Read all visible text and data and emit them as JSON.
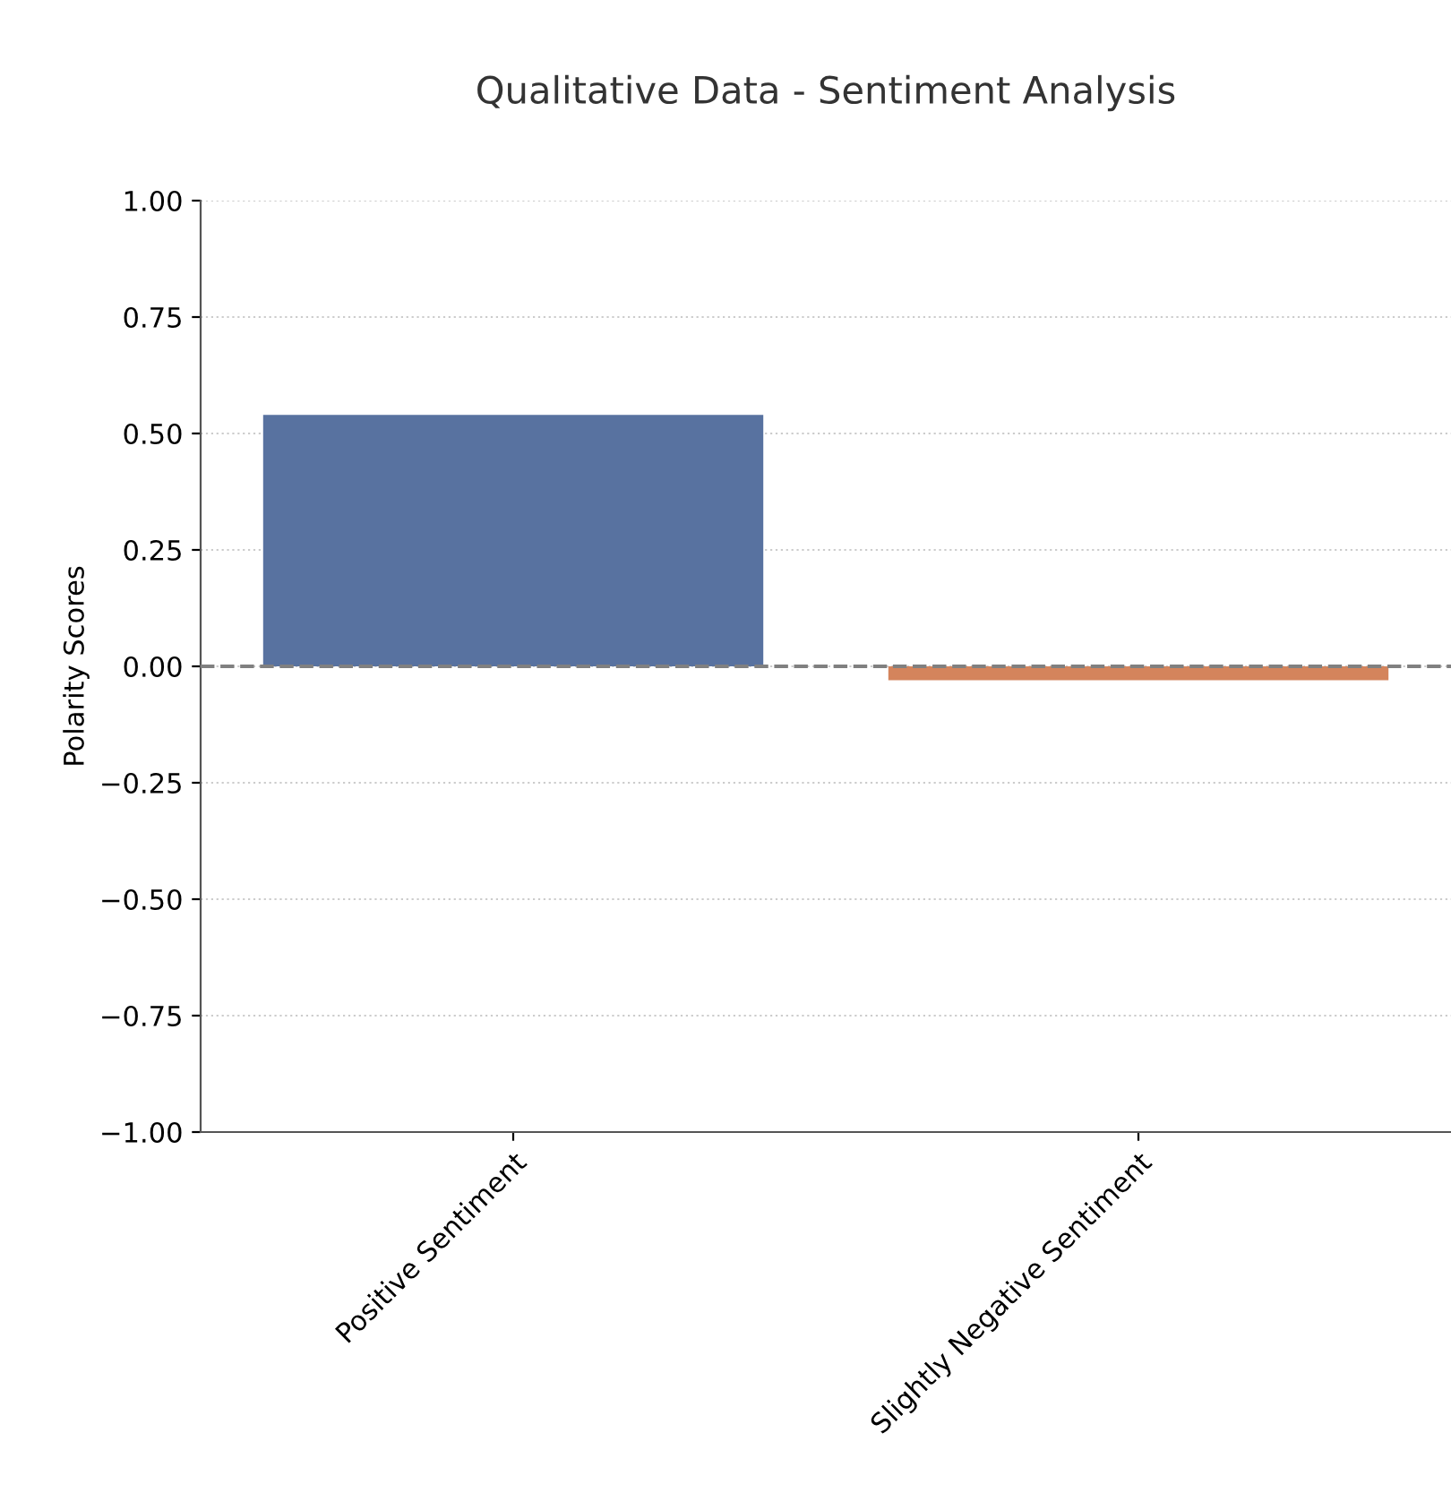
{
  "chart_data": {
    "type": "bar",
    "title": "Qualitative Data - Sentiment Analysis",
    "ylabel": "Polarity Scores",
    "categories": [
      "Positive Sentiment",
      "Slightly Negative Sentiment"
    ],
    "values": [
      0.54,
      -0.03
    ],
    "colors": [
      "#5872a0",
      "#d4845c"
    ],
    "ylim": [
      -1.0,
      1.0
    ],
    "yticks": [
      {
        "value": -1.0,
        "label": "−1.00"
      },
      {
        "value": -0.75,
        "label": "−0.75"
      },
      {
        "value": -0.5,
        "label": "−0.50"
      },
      {
        "value": -0.25,
        "label": "−0.25"
      },
      {
        "value": 0.0,
        "label": "0.00"
      },
      {
        "value": 0.25,
        "label": "0.25"
      },
      {
        "value": 0.5,
        "label": "0.50"
      },
      {
        "value": 0.75,
        "label": "0.75"
      },
      {
        "value": 1.0,
        "label": "1.00"
      }
    ],
    "grid": "y",
    "ref_lines": [
      {
        "axis": "y",
        "value": 0,
        "color": "#808080",
        "line_style": "dashed"
      }
    ]
  }
}
